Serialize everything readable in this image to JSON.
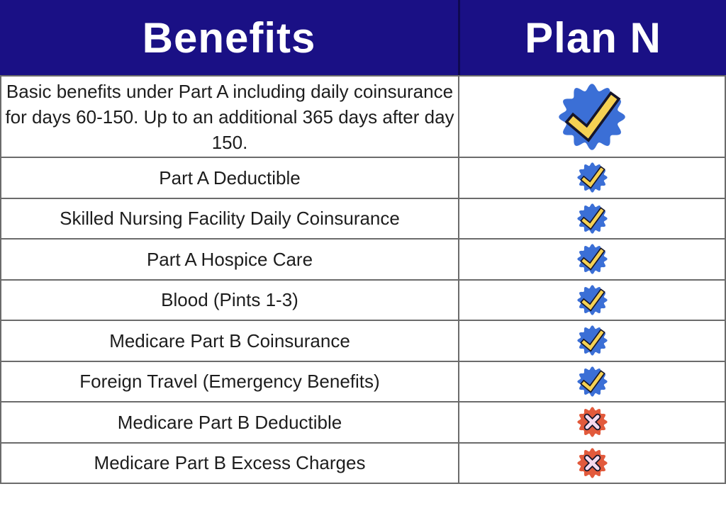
{
  "header": {
    "benefits_label": "Benefits",
    "plan_label": "Plan N"
  },
  "chart_data": {
    "type": "table",
    "title": "Medicare Supplement Plan N coverage",
    "columns": [
      "Benefits",
      "Plan N"
    ],
    "rows": [
      {
        "benefit": "Basic benefits under Part A including daily coinsurance for days 60-150.  Up to an additional 365 days after day 150.",
        "plan_n": "included",
        "icon": "check-badge-icon",
        "badge_size": "large"
      },
      {
        "benefit": "Part A Deductible",
        "plan_n": "included",
        "icon": "check-badge-icon",
        "badge_size": "small"
      },
      {
        "benefit": "Skilled Nursing Facility Daily Coinsurance",
        "plan_n": "included",
        "icon": "check-badge-icon",
        "badge_size": "small"
      },
      {
        "benefit": "Part A Hospice Care",
        "plan_n": "included",
        "icon": "check-badge-icon",
        "badge_size": "small"
      },
      {
        "benefit": "Blood (Pints 1-3)",
        "plan_n": "included",
        "icon": "check-badge-icon",
        "badge_size": "small"
      },
      {
        "benefit": "Medicare Part B Coinsurance",
        "plan_n": "included",
        "icon": "check-badge-icon",
        "badge_size": "small"
      },
      {
        "benefit": "Foreign Travel (Emergency Benefits)",
        "plan_n": "included",
        "icon": "check-badge-icon",
        "badge_size": "small"
      },
      {
        "benefit": "Medicare Part B Deductible",
        "plan_n": "not-included",
        "icon": "cross-badge-icon",
        "badge_size": "small"
      },
      {
        "benefit": "Medicare Part B Excess Charges",
        "plan_n": "not-included",
        "icon": "cross-badge-icon",
        "badge_size": "small"
      }
    ]
  },
  "colors": {
    "header_bg": "#1a1085",
    "header_text": "#ffffff",
    "header_divider": "#0e0950",
    "grid": "#6b6b6b",
    "text": "#1d1d1d",
    "check_badge": "#3b6fd6",
    "check_mark": "#f5d153",
    "cross_badge": "#e25a3c",
    "cross_mark": "#f6d9ee",
    "mark_outline": "#15152a"
  }
}
